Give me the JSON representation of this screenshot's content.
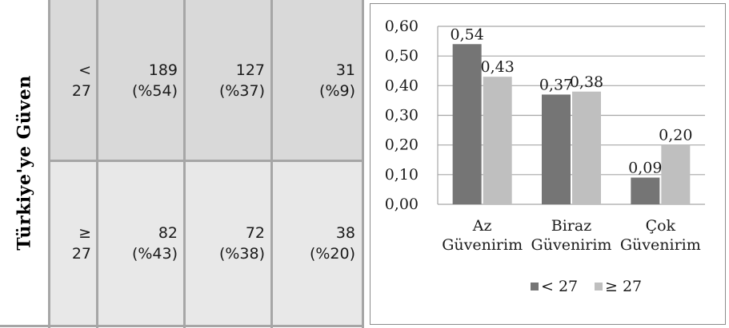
{
  "table": {
    "row_header": "Türkiye'ye Güven",
    "rows": [
      {
        "group_top": "<",
        "group_bottom": "27",
        "cells": [
          [
            "189",
            "(%54)"
          ],
          [
            "127",
            "(%37)"
          ],
          [
            "31",
            "(%9)"
          ]
        ]
      },
      {
        "group_top": "≥",
        "group_bottom": "27",
        "cells": [
          [
            "82",
            "(%43)"
          ],
          [
            "72",
            "(%38)"
          ],
          [
            "38",
            "(%20)"
          ]
        ]
      }
    ]
  },
  "colors": {
    "series1": "#757575",
    "series2": "#bfbfbf",
    "gridline": "#a6a6a6",
    "row1_bg": "#d9d9d9",
    "row2_bg": "#e8e8e8"
  },
  "chart_data": {
    "type": "bar",
    "categories": [
      [
        "Az",
        "Güvenirim"
      ],
      [
        "Biraz",
        "Güvenirim"
      ],
      [
        "Çok",
        "Güvenirim"
      ]
    ],
    "series": [
      {
        "name": "< 27",
        "values": [
          0.54,
          0.37,
          0.09
        ],
        "labels": [
          "0,54",
          "0,37",
          "0,09"
        ]
      },
      {
        "name": "≥ 27",
        "values": [
          0.43,
          0.38,
          0.2
        ],
        "labels": [
          "0,43",
          "0,38",
          "0,20"
        ]
      }
    ],
    "yticks": [
      "0,00",
      "0,10",
      "0,20",
      "0,30",
      "0,40",
      "0,50",
      "0,60"
    ],
    "ylim": [
      0,
      0.6
    ],
    "grid": true,
    "legend_position": "bottom"
  }
}
